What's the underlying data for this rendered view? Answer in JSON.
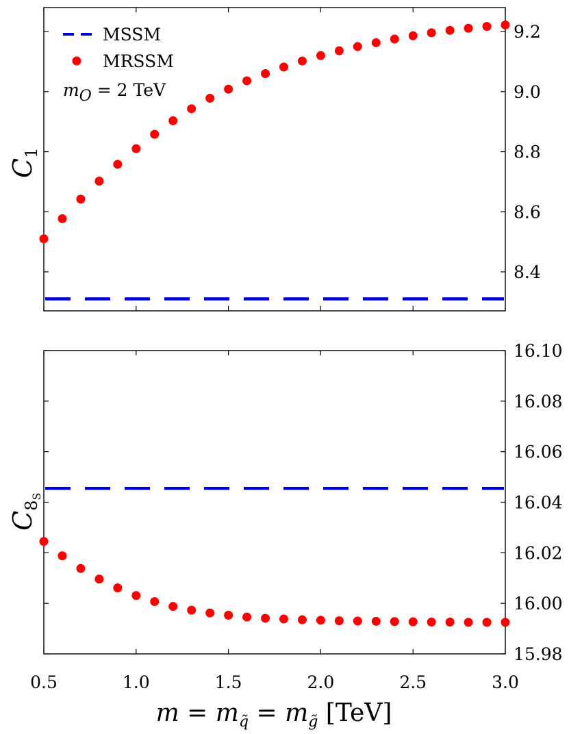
{
  "chart_data": [
    {
      "type": "scatter",
      "panel": "top",
      "ylabel": "C",
      "ylabel_sub": "1",
      "x": [
        0.5,
        0.6,
        0.7,
        0.8,
        0.9,
        1.0,
        1.1,
        1.2,
        1.3,
        1.4,
        1.5,
        1.6,
        1.7,
        1.8,
        1.9,
        2.0,
        2.1,
        2.2,
        2.3,
        2.4,
        2.5,
        2.6,
        2.7,
        2.8,
        2.9,
        3.0
      ],
      "series": [
        {
          "name": "MSSM",
          "style": "dashed-line",
          "color": "#0000dd",
          "constant": 8.31
        },
        {
          "name": "MRSSM",
          "style": "markers",
          "color": "#ff0000",
          "values": [
            8.51,
            8.577,
            8.642,
            8.702,
            8.758,
            8.81,
            8.858,
            8.903,
            8.943,
            8.978,
            9.008,
            9.036,
            9.06,
            9.082,
            9.102,
            9.12,
            9.136,
            9.15,
            9.163,
            9.175,
            9.186,
            9.196,
            9.204,
            9.211,
            9.217,
            9.222
          ]
        }
      ],
      "xlim": [
        0.5,
        3.0
      ],
      "ylim": [
        8.27,
        9.28
      ],
      "yticks": [
        "8.4",
        "8.6",
        "8.8",
        "9.0",
        "9.2"
      ],
      "ytick_values": [
        8.4,
        8.6,
        8.8,
        9.0,
        9.2
      ],
      "ytick_side": "right",
      "legend": {
        "placement": "top-left",
        "entries": [
          "MSSM",
          "MRSSM"
        ],
        "annotation_prefix": "m",
        "annotation_sub": "O",
        "annotation_suffix": " = 2 TeV"
      }
    },
    {
      "type": "scatter",
      "panel": "bottom",
      "ylabel": "C",
      "ylabel_sub": "8",
      "ylabel_subsub": "S",
      "x": [
        0.5,
        0.6,
        0.7,
        0.8,
        0.9,
        1.0,
        1.1,
        1.2,
        1.3,
        1.4,
        1.5,
        1.6,
        1.7,
        1.8,
        1.9,
        2.0,
        2.1,
        2.2,
        2.3,
        2.4,
        2.5,
        2.6,
        2.7,
        2.8,
        2.9,
        3.0
      ],
      "series": [
        {
          "name": "MSSM",
          "style": "dashed-line",
          "color": "#0000dd",
          "constant": 16.0455
        },
        {
          "name": "MRSSM",
          "style": "markers",
          "color": "#ff0000",
          "values": [
            16.0245,
            16.0188,
            16.0138,
            16.0096,
            16.0061,
            16.0031,
            16.0007,
            15.9988,
            15.9973,
            15.9962,
            15.9953,
            15.9946,
            15.9941,
            15.9938,
            15.9935,
            15.9933,
            15.9931,
            15.993,
            15.9929,
            15.9928,
            15.9927,
            15.9926,
            15.9926,
            15.9925,
            15.9925,
            15.9925
          ]
        }
      ],
      "xlim": [
        0.5,
        3.0
      ],
      "ylim": [
        15.98,
        16.1
      ],
      "yticks": [
        "15.98",
        "16.00",
        "16.02",
        "16.04",
        "16.06",
        "16.08",
        "16.10"
      ],
      "ytick_values": [
        15.98,
        16.0,
        16.02,
        16.04,
        16.06,
        16.08,
        16.1
      ],
      "ytick_side": "right",
      "xticks": [
        "0.5",
        "1.0",
        "1.5",
        "2.0",
        "2.5",
        "3.0"
      ],
      "xtick_values": [
        0.5,
        1.0,
        1.5,
        2.0,
        2.5,
        3.0
      ],
      "xlabel_parts": {
        "m": "m",
        "eq": " = ",
        "sub_q": "q̃",
        "sub_g": "g̃",
        "unit": " [TeV]"
      }
    }
  ]
}
